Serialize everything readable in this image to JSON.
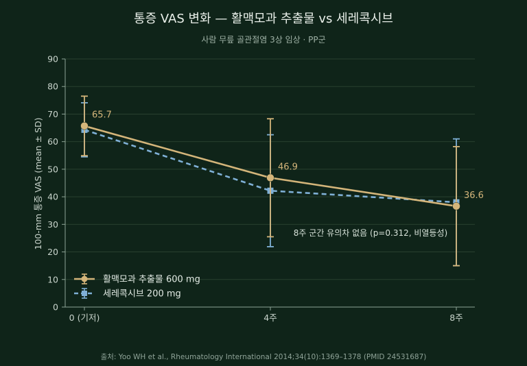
{
  "chart_data": {
    "type": "line",
    "title": "통증 VAS 변화 — 활맥모과 추출물 vs 세레콕시브",
    "subtitle": "사람 무릎 골관절염 3상 임상 · PP군",
    "ylabel": "100-mm 통증 VAS  (mean ± SD)",
    "xlabel": "",
    "categories": [
      "0 (기저)",
      "4주",
      "8주"
    ],
    "ylim": [
      0,
      90
    ],
    "yticks": [
      0,
      10,
      20,
      30,
      40,
      50,
      60,
      70,
      80,
      90
    ],
    "grid": true,
    "legend_position": "bottom-left",
    "series": [
      {
        "name": "활맥모과 추출물 600 mg",
        "values": [
          65.7,
          46.9,
          36.6
        ],
        "sd": [
          10.8,
          21.4,
          21.6
        ],
        "data_labels": [
          "65.7",
          "46.9",
          "36.6"
        ],
        "color": "#d4b57a",
        "line_style": "solid",
        "marker": "circle"
      },
      {
        "name": "세레콕시브 200 mg",
        "values": [
          64.3,
          42.2,
          38.0
        ],
        "sd": [
          9.8,
          20.3,
          23.0
        ],
        "color": "#7fb0d6",
        "line_style": "dashed",
        "marker": "square"
      }
    ],
    "annotation": "8주 군간 유의차 없음 (p=0.312, 비열등성)",
    "source": "출처: Yoo WH et al., Rheumatology International 2014;34(10):1369–1378 (PMID 24531687)"
  }
}
